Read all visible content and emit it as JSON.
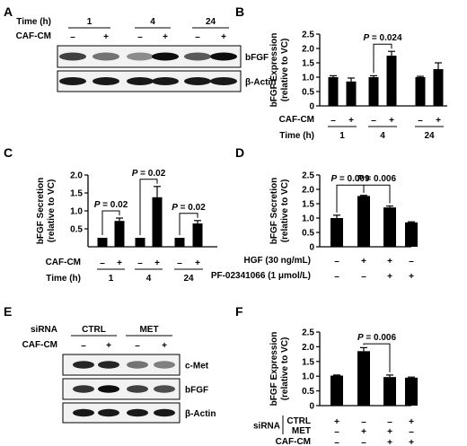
{
  "panel_labels": [
    "A",
    "B",
    "C",
    "D",
    "E",
    "F"
  ],
  "panel_a": {
    "time_label": "Time (h)",
    "time_groups": [
      "1",
      "4",
      "24"
    ],
    "treat_label": "CAF-CM",
    "signs": [
      "–",
      "+",
      "–",
      "+",
      "–",
      "+"
    ],
    "bands": [
      {
        "name": "bFGF",
        "intensity": [
          0.75,
          0.55,
          0.45,
          0.95,
          0.65,
          0.95
        ]
      },
      {
        "name": "β-Actin",
        "intensity": [
          0.9,
          0.9,
          0.9,
          0.9,
          0.9,
          0.9
        ]
      }
    ]
  },
  "panel_e": {
    "sirna_label": "siRNA",
    "groups": [
      "CTRL",
      "MET"
    ],
    "treat_label": "CAF-CM",
    "signs": [
      "–",
      "+",
      "–",
      "+"
    ],
    "bands": [
      {
        "name": "c-Met",
        "intensity": [
          0.85,
          0.85,
          0.55,
          0.5
        ]
      },
      {
        "name": "bFGF",
        "intensity": [
          0.8,
          0.95,
          0.75,
          0.7
        ]
      },
      {
        "name": "β-Actin",
        "intensity": [
          0.9,
          0.9,
          0.9,
          0.9
        ]
      }
    ]
  },
  "chart_data": [
    {
      "panel": "B",
      "type": "bar",
      "ylabel": "bFGF Expression\n(relative to VC)",
      "ylim": [
        0,
        2.5
      ],
      "yticks": [
        "0",
        "0.5",
        "1.0",
        "1.5",
        "2.0",
        "2.5"
      ],
      "values": [
        1.0,
        0.85,
        1.0,
        1.75,
        1.0,
        1.28
      ],
      "errors": [
        0.05,
        0.12,
        0.05,
        0.15,
        0.03,
        0.22
      ],
      "row_labels": [
        "CAF-CM",
        "Time (h)"
      ],
      "signs": [
        "–",
        "+",
        "–",
        "+",
        "–",
        "+"
      ],
      "groups": [
        "1",
        "4",
        "24"
      ],
      "annotations": [
        {
          "text": "P = 0.024",
          "from": 2,
          "to": 3
        }
      ]
    },
    {
      "panel": "C",
      "type": "bar",
      "ylabel": "bFGF Secretion\n(relative to VC)",
      "ylim": [
        0,
        2.0
      ],
      "yticks": [
        "0.5",
        "1.0",
        "1.5",
        "2.0"
      ],
      "values": [
        0.25,
        0.72,
        0.25,
        1.38,
        0.25,
        0.65
      ],
      "errors": [
        0.0,
        0.08,
        0.0,
        0.3,
        0.0,
        0.08
      ],
      "row_labels": [
        "CAF-CM",
        "Time (h)"
      ],
      "signs": [
        "–",
        "+",
        "–",
        "+",
        "–",
        "+"
      ],
      "groups": [
        "1",
        "4",
        "24"
      ],
      "annotations": [
        {
          "text": "P = 0.02",
          "from": 0,
          "to": 1
        },
        {
          "text": "P = 0.02",
          "from": 2,
          "to": 3
        },
        {
          "text": "P = 0.02",
          "from": 4,
          "to": 5
        }
      ]
    },
    {
      "panel": "D",
      "type": "bar",
      "ylabel": "bFGF Secretion\n(relative to VC)",
      "ylim": [
        0,
        2.5
      ],
      "yticks": [
        "0",
        "0.5",
        "1.0",
        "1.5",
        "2.0",
        "2.5"
      ],
      "values": [
        1.0,
        1.77,
        1.37,
        0.85
      ],
      "errors": [
        0.1,
        0.02,
        0.05,
        0.02
      ],
      "row_labels": [
        "HGF (30 ng/mL)",
        "PF-02341066 (1 μmol/L)"
      ],
      "row_signs": [
        [
          "–",
          "+",
          "+",
          "–"
        ],
        [
          "–",
          "–",
          "+",
          "+"
        ]
      ],
      "annotations": [
        {
          "text": "P = 0.009",
          "from": 0,
          "to": 1
        },
        {
          "text": "P = 0.006",
          "from": 1,
          "to": 2
        }
      ]
    },
    {
      "panel": "F",
      "type": "bar",
      "ylabel": "bFGF Expression\n(relative to VC)",
      "ylim": [
        0,
        2.5
      ],
      "yticks": [
        "0",
        "0.5",
        "1.0",
        "1.5",
        "2.0",
        "2.5"
      ],
      "values": [
        1.02,
        1.85,
        0.97,
        0.95
      ],
      "errors": [
        0.02,
        0.12,
        0.07,
        0.02
      ],
      "sirna_label": "siRNA",
      "row_labels": [
        "CTRL",
        "MET",
        "CAF-CM"
      ],
      "row_signs": [
        [
          "+",
          "–",
          "–",
          "+"
        ],
        [
          "–",
          "+",
          "+",
          "–"
        ],
        [
          "–",
          "–",
          "+",
          "+"
        ]
      ],
      "annotations": [
        {
          "text": "P = 0.006",
          "from": 1,
          "to": 2
        }
      ]
    }
  ]
}
